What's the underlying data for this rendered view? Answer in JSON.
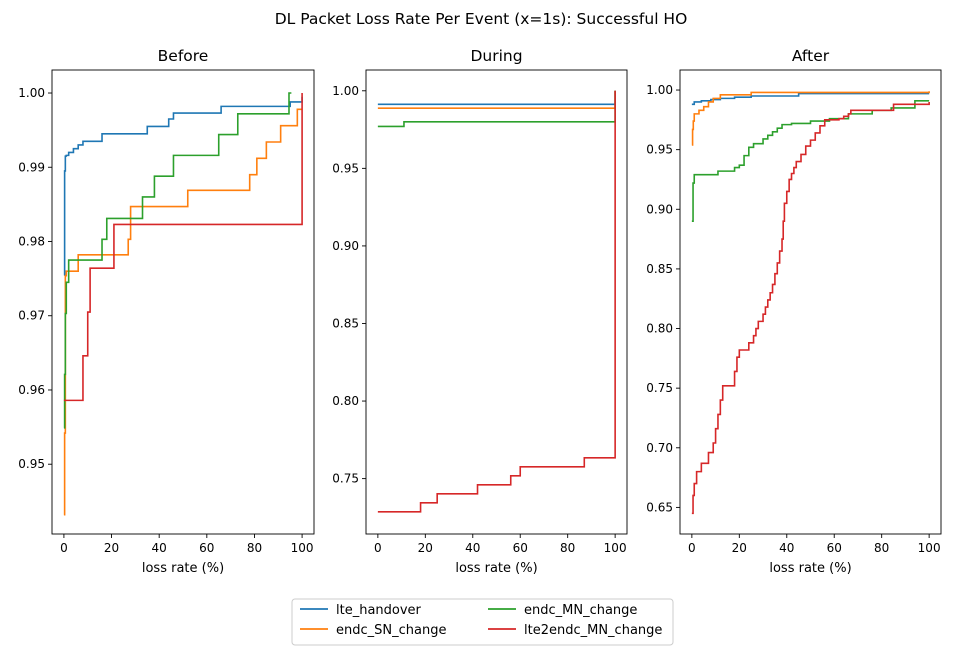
{
  "suptitle": "DL Packet Loss Rate Per Event (x=1s): Successful HO",
  "legend": [
    "lte_handover",
    "endc_SN_change",
    "endc_MN_change",
    "lte2endc_MN_change"
  ],
  "colors": {
    "lte_handover": "#1f77b4",
    "endc_SN_change": "#ff7f0e",
    "endc_MN_change": "#2ca02c",
    "lte2endc_MN_change": "#d62728"
  },
  "chart_data": [
    {
      "type": "line",
      "title": "Before",
      "xlabel": "loss rate (%)",
      "ylabel": "",
      "xlim": [
        -5,
        105
      ],
      "ylim": [
        0.9406,
        1.0031
      ],
      "xticks": [
        0,
        20,
        40,
        60,
        80,
        100
      ],
      "yticks": [
        0.95,
        0.96,
        0.97,
        0.98,
        0.99,
        1.0
      ],
      "ytick_labels": [
        "0.95",
        "0.96",
        "0.97",
        "0.98",
        "0.99",
        "1.00"
      ],
      "legend": "bottom-center",
      "grid": false,
      "series": [
        {
          "name": "lte_handover",
          "x": [
            0,
            0.3,
            0.6,
            1,
            2,
            4,
            6,
            8,
            12,
            16,
            25,
            35,
            44,
            46,
            60,
            66,
            80,
            95,
            100
          ],
          "y": [
            0.9755,
            0.9895,
            0.9915,
            0.9916,
            0.992,
            0.9925,
            0.993,
            0.9935,
            0.9935,
            0.9945,
            0.9945,
            0.9955,
            0.9965,
            0.9973,
            0.9973,
            0.9982,
            0.9982,
            0.9988,
            0.9995
          ]
        },
        {
          "name": "endc_SN_change",
          "x": [
            0,
            0.3,
            0.6,
            1,
            6,
            15,
            27,
            28,
            35,
            52,
            65,
            78,
            81,
            85,
            88,
            91,
            93,
            98,
            100
          ],
          "y": [
            0.9432,
            0.9542,
            0.9754,
            0.976,
            0.9782,
            0.9782,
            0.9803,
            0.9847,
            0.9847,
            0.9869,
            0.9869,
            0.989,
            0.9912,
            0.9934,
            0.9934,
            0.9956,
            0.9956,
            0.9978,
            0.9978
          ]
        },
        {
          "name": "endc_MN_change",
          "x": [
            0,
            0.3,
            0.6,
            1,
            2,
            15,
            16,
            18,
            22,
            33,
            34,
            38,
            46,
            56,
            65,
            73,
            90,
            94.5,
            95.5
          ],
          "y": [
            0.9549,
            0.9621,
            0.9703,
            0.9745,
            0.9775,
            0.9775,
            0.9803,
            0.9831,
            0.9831,
            0.986,
            0.986,
            0.9888,
            0.9916,
            0.9916,
            0.9944,
            0.9972,
            0.9972,
            1.0,
            1.0
          ]
        },
        {
          "name": "lte2endc_MN_change",
          "x": [
            0,
            0.5,
            1,
            8,
            9,
            10,
            11,
            12,
            16,
            20,
            21,
            40,
            60,
            80,
            99.5,
            100
          ],
          "y": [
            0.9586,
            0.9586,
            0.9586,
            0.9646,
            0.9646,
            0.9705,
            0.9764,
            0.9764,
            0.9764,
            0.9764,
            0.9823,
            0.9823,
            0.9823,
            0.9823,
            0.9823,
            1.0
          ]
        }
      ]
    },
    {
      "type": "line",
      "title": "During",
      "xlabel": "loss rate (%)",
      "ylabel": "",
      "xlim": [
        -5,
        105
      ],
      "ylim": [
        0.7143,
        1.0134
      ],
      "xticks": [
        0,
        20,
        40,
        60,
        80,
        100
      ],
      "yticks": [
        0.75,
        0.8,
        0.85,
        0.9,
        0.95,
        1.0
      ],
      "ytick_labels": [
        "0.75",
        "0.80",
        "0.85",
        "0.90",
        "0.95",
        "1.00"
      ],
      "legend": "bottom-center",
      "grid": false,
      "series": [
        {
          "name": "lte_handover",
          "x": [
            0,
            99.5,
            100
          ],
          "y": [
            0.9913,
            0.9913,
            1.0
          ]
        },
        {
          "name": "endc_SN_change",
          "x": [
            0,
            99.5,
            100
          ],
          "y": [
            0.9888,
            0.9888,
            1.0
          ]
        },
        {
          "name": "endc_MN_change",
          "x": [
            0,
            11,
            99.5,
            100
          ],
          "y": [
            0.977,
            0.98,
            0.98,
            1.0
          ]
        },
        {
          "name": "lte2endc_MN_change",
          "x": [
            0,
            18,
            25,
            42,
            56,
            60,
            87,
            99.5,
            100
          ],
          "y": [
            0.7286,
            0.7344,
            0.7402,
            0.746,
            0.7518,
            0.7576,
            0.7634,
            0.7634,
            1.0
          ]
        }
      ]
    },
    {
      "type": "line",
      "title": "After",
      "xlabel": "loss rate (%)",
      "ylabel": "",
      "xlim": [
        -5,
        105
      ],
      "ylim": [
        0.6277,
        1.0168
      ],
      "xticks": [
        0,
        20,
        40,
        60,
        80,
        100
      ],
      "yticks": [
        0.65,
        0.7,
        0.75,
        0.8,
        0.85,
        0.9,
        0.95,
        1.0
      ],
      "ytick_labels": [
        "0.65",
        "0.70",
        "0.75",
        "0.80",
        "0.85",
        "0.90",
        "0.95",
        "1.00"
      ],
      "legend": "bottom-center",
      "grid": false,
      "series": [
        {
          "name": "lte_handover",
          "x": [
            0,
            1,
            4,
            8,
            12,
            18,
            25,
            45,
            100
          ],
          "y": [
            0.988,
            0.99,
            0.991,
            0.992,
            0.993,
            0.994,
            0.995,
            0.997,
            0.997
          ]
        },
        {
          "name": "endc_SN_change",
          "x": [
            0,
            0.3,
            0.6,
            1,
            3,
            5,
            7,
            9,
            12,
            25,
            98,
            100
          ],
          "y": [
            0.954,
            0.967,
            0.974,
            0.98,
            0.983,
            0.986,
            0.99,
            0.993,
            0.996,
            0.998,
            0.998,
            0.999
          ]
        },
        {
          "name": "endc_MN_change",
          "x": [
            0,
            0.5,
            1,
            11,
            18,
            20,
            22,
            24,
            26,
            30,
            32,
            34,
            36,
            38,
            42,
            50,
            58,
            66,
            76,
            84,
            94,
            100
          ],
          "y": [
            0.89,
            0.922,
            0.929,
            0.932,
            0.935,
            0.937,
            0.945,
            0.952,
            0.955,
            0.959,
            0.962,
            0.965,
            0.968,
            0.971,
            0.972,
            0.974,
            0.976,
            0.98,
            0.983,
            0.985,
            0.991,
            0.991
          ]
        },
        {
          "name": "lte2endc_MN_change",
          "x": [
            0,
            0.5,
            1,
            2,
            4,
            7,
            9,
            10,
            11,
            12,
            13,
            15,
            18,
            19,
            20,
            24,
            26,
            27,
            28,
            30,
            31,
            32,
            33,
            34,
            35,
            36,
            37,
            38,
            38.5,
            39,
            40,
            41,
            42,
            43,
            44,
            46,
            48,
            50,
            52,
            54,
            56,
            62,
            64,
            66,
            67,
            80,
            85,
            100
          ],
          "y": [
            0.645,
            0.66,
            0.67,
            0.68,
            0.687,
            0.696,
            0.704,
            0.716,
            0.728,
            0.74,
            0.752,
            0.752,
            0.764,
            0.776,
            0.782,
            0.788,
            0.794,
            0.8,
            0.806,
            0.812,
            0.818,
            0.824,
            0.83,
            0.837,
            0.846,
            0.855,
            0.865,
            0.875,
            0.89,
            0.905,
            0.915,
            0.925,
            0.93,
            0.935,
            0.94,
            0.946,
            0.953,
            0.958,
            0.964,
            0.97,
            0.975,
            0.976,
            0.978,
            0.98,
            0.983,
            0.983,
            0.988,
            0.99
          ]
        }
      ]
    }
  ]
}
